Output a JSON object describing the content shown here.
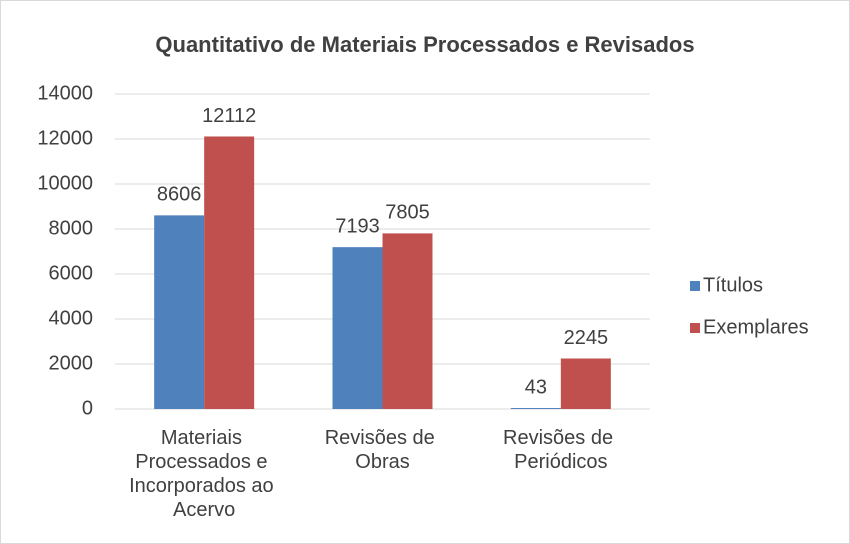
{
  "chart_data": {
    "type": "bar",
    "title": "Quantitativo de Materiais Processados e Revisados",
    "categories": [
      "Materiais Processados e Incorporados ao Acervo",
      "Revisões de Obras",
      "Revisões de Periódicos"
    ],
    "series": [
      {
        "name": "Títulos",
        "color": "#4f81bd",
        "values": [
          8606,
          7193,
          43
        ]
      },
      {
        "name": "Exemplares",
        "color": "#c0504d",
        "values": [
          12112,
          7805,
          2245
        ]
      }
    ],
    "ylim": [
      0,
      14000
    ],
    "yticks": [
      0,
      2000,
      4000,
      6000,
      8000,
      10000,
      12000,
      14000
    ],
    "grid": true,
    "legend": "right"
  }
}
